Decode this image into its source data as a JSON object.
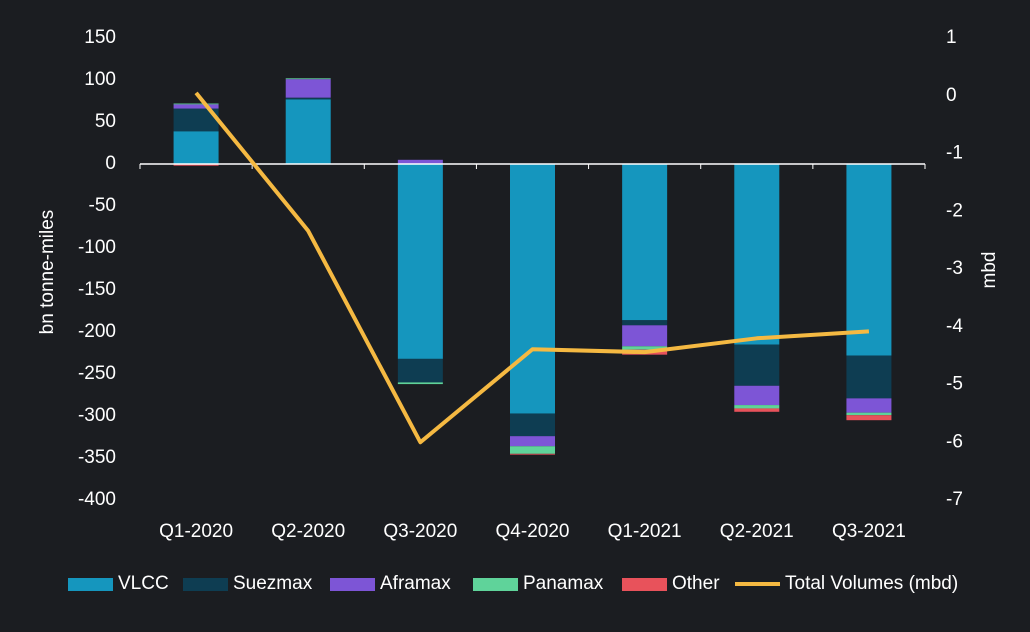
{
  "chart_data": {
    "type": "bar",
    "stacked": true,
    "y_label": "bn tonne-miles",
    "y2_label": "mbd",
    "categories": [
      "Q1-2020",
      "Q2-2020",
      "Q3-2020",
      "Q4-2020",
      "Q1-2021",
      "Q2-2021",
      "Q3-2021"
    ],
    "series": [
      {
        "name": "VLCC",
        "color": "#1596be",
        "values": [
          39,
          77,
          -232,
          -297,
          -186,
          -215,
          -228
        ]
      },
      {
        "name": "Suezmax",
        "color": "#0e3d52",
        "values": [
          27,
          2,
          -28,
          -27,
          -6,
          -49,
          -51
        ]
      },
      {
        "name": "Aframax",
        "color": "#7d55d6",
        "values": [
          5,
          22,
          5,
          -12,
          -25,
          -23,
          -17
        ]
      },
      {
        "name": "Panamax",
        "color": "#5fd39a",
        "values": [
          1,
          1,
          -2,
          -9,
          -4,
          -4,
          -3
        ]
      },
      {
        "name": "Other",
        "color": "#e8525b",
        "values": [
          -2,
          0,
          0,
          -1,
          -6,
          -4,
          -6
        ]
      },
      {
        "name": "Total Volumes (mbd)",
        "color": "#f5b942",
        "type": "line",
        "axis": "y2",
        "values": [
          0.05,
          -2.34,
          -6.0,
          -4.39,
          -4.44,
          -4.2,
          -4.08
        ]
      }
    ],
    "ylim": [
      -400,
      150
    ],
    "yticks": [
      -400,
      -350,
      -300,
      -250,
      -200,
      -150,
      -100,
      -50,
      0,
      50,
      100,
      150
    ],
    "y2lim": [
      -7,
      1
    ],
    "y2ticks": [
      -7,
      -6,
      -5,
      -4,
      -3,
      -2,
      -1,
      0,
      1
    ]
  }
}
